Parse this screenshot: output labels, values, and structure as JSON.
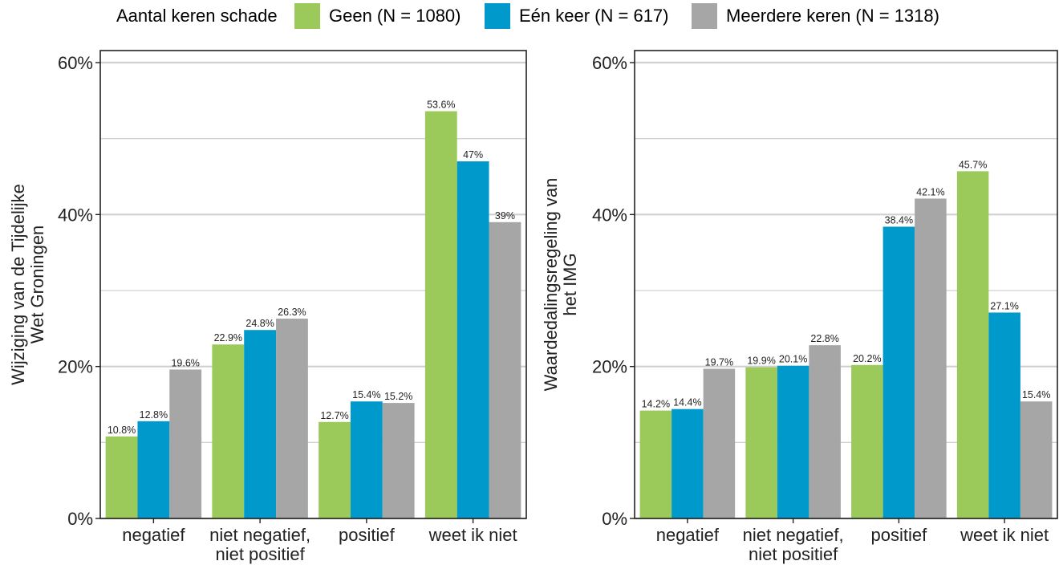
{
  "legend": {
    "title": "Aantal keren schade",
    "items": [
      {
        "label": "Geen (N = 1080)",
        "color": "#9cca5a"
      },
      {
        "label": "Eén keer (N = 617)",
        "color": "#0099cc"
      },
      {
        "label": "Meerdere keren (N = 1318)",
        "color": "#a6a6a6"
      }
    ]
  },
  "chart_data": [
    {
      "type": "bar",
      "ylabel": [
        "Wijziging van de Tijdelijke",
        "Wet Groningen"
      ],
      "categories": [
        [
          "negatief"
        ],
        [
          "niet negatief,",
          "niet positief"
        ],
        [
          "positief"
        ],
        [
          "weet ik niet"
        ]
      ],
      "ylim": [
        0,
        60
      ],
      "yticks": [
        "0%",
        "20%",
        "40%",
        "60%"
      ],
      "grid": true,
      "series": [
        {
          "name": "Geen (N = 1080)",
          "values": [
            10.8,
            22.9,
            12.7,
            53.6
          ],
          "labels": [
            "10.8%",
            "22.9%",
            "12.7%",
            "53.6%"
          ]
        },
        {
          "name": "Eén keer (N = 617)",
          "values": [
            12.8,
            24.8,
            15.4,
            47
          ],
          "labels": [
            "12.8%",
            "24.8%",
            "15.4%",
            "47%"
          ]
        },
        {
          "name": "Meerdere keren (N = 1318)",
          "values": [
            19.6,
            26.3,
            15.2,
            39
          ],
          "labels": [
            "19.6%",
            "26.3%",
            "15.2%",
            "39%"
          ]
        }
      ]
    },
    {
      "type": "bar",
      "ylabel": [
        "Waardedalingsregeling van",
        "het IMG"
      ],
      "categories": [
        [
          "negatief"
        ],
        [
          "niet negatief,",
          "niet positief"
        ],
        [
          "positief"
        ],
        [
          "weet ik niet"
        ]
      ],
      "ylim": [
        0,
        60
      ],
      "yticks": [
        "0%",
        "20%",
        "40%",
        "60%"
      ],
      "grid": true,
      "series": [
        {
          "name": "Geen (N = 1080)",
          "values": [
            14.2,
            19.9,
            20.2,
            45.7
          ],
          "labels": [
            "14.2%",
            "19.9%",
            "20.2%",
            "45.7%"
          ]
        },
        {
          "name": "Eén keer (N = 617)",
          "values": [
            14.4,
            20.1,
            38.4,
            27.1
          ],
          "labels": [
            "14.4%",
            "20.1%",
            "38.4%",
            "27.1%"
          ]
        },
        {
          "name": "Meerdere keren (N = 1318)",
          "values": [
            19.7,
            22.8,
            42.1,
            15.4
          ],
          "labels": [
            "19.7%",
            "22.8%",
            "42.1%",
            "15.4%"
          ]
        }
      ]
    }
  ]
}
